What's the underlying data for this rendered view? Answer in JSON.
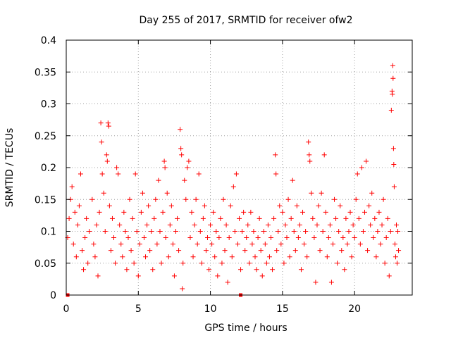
{
  "chart_data": {
    "type": "scatter",
    "title": "Day 255 of 2017, SRMTID for receiver ofw2",
    "xlabel": "GPS time / hours",
    "ylabel": "SRMTID / TECUs",
    "xlim": [
      0,
      24
    ],
    "ylim": [
      0,
      0.4
    ],
    "x_ticks": [
      0,
      5,
      10,
      15,
      20
    ],
    "x_tick_labels": [
      "0",
      "5",
      "10",
      "15",
      "20"
    ],
    "y_ticks": [
      0,
      0.05,
      0.1,
      0.15,
      0.2,
      0.25,
      0.3,
      0.35,
      0.4
    ],
    "y_tick_labels": [
      "0",
      "0.05",
      "0.1",
      "0.15",
      "0.2",
      "0.25",
      "0.3",
      "0.35",
      "0.4"
    ],
    "grid": true,
    "marker": "+",
    "color": "#ff0000",
    "series": [
      {
        "name": "SRMTID",
        "points": [
          [
            0.1,
            0.09
          ],
          [
            0.2,
            0.12
          ],
          [
            0.3,
            0.15
          ],
          [
            0.4,
            0.17
          ],
          [
            0.5,
            0.08
          ],
          [
            0.6,
            0.13
          ],
          [
            0.7,
            0.06
          ],
          [
            0.8,
            0.11
          ],
          [
            0.9,
            0.14
          ],
          [
            1.0,
            0.19
          ],
          [
            1.1,
            0.07
          ],
          [
            1.2,
            0.04
          ],
          [
            1.3,
            0.09
          ],
          [
            1.4,
            0.12
          ],
          [
            1.5,
            0.05
          ],
          [
            1.6,
            0.1
          ],
          [
            1.8,
            0.15
          ],
          [
            1.9,
            0.08
          ],
          [
            2.0,
            0.06
          ],
          [
            2.1,
            0.11
          ],
          [
            2.2,
            0.03
          ],
          [
            2.3,
            0.13
          ],
          [
            2.4,
            0.27
          ],
          [
            2.45,
            0.24
          ],
          [
            2.5,
            0.19
          ],
          [
            2.6,
            0.16
          ],
          [
            2.7,
            0.1
          ],
          [
            2.8,
            0.22
          ],
          [
            2.85,
            0.21
          ],
          [
            2.9,
            0.27
          ],
          [
            2.95,
            0.265
          ],
          [
            3.0,
            0.14
          ],
          [
            3.1,
            0.07
          ],
          [
            3.2,
            0.12
          ],
          [
            3.3,
            0.09
          ],
          [
            3.4,
            0.05
          ],
          [
            3.5,
            0.2
          ],
          [
            3.6,
            0.19
          ],
          [
            3.7,
            0.11
          ],
          [
            3.8,
            0.08
          ],
          [
            3.9,
            0.06
          ],
          [
            4.0,
            0.13
          ],
          [
            4.1,
            0.1
          ],
          [
            4.2,
            0.04
          ],
          [
            4.3,
            0.09
          ],
          [
            4.4,
            0.15
          ],
          [
            4.5,
            0.07
          ],
          [
            4.6,
            0.12
          ],
          [
            4.7,
            0.05
          ],
          [
            4.8,
            0.19
          ],
          [
            4.9,
            0.1
          ],
          [
            5.0,
            0.03
          ],
          [
            5.1,
            0.08
          ],
          [
            5.2,
            0.13
          ],
          [
            5.3,
            0.16
          ],
          [
            5.4,
            0.09
          ],
          [
            5.5,
            0.06
          ],
          [
            5.6,
            0.11
          ],
          [
            5.7,
            0.14
          ],
          [
            5.8,
            0.07
          ],
          [
            5.9,
            0.1
          ],
          [
            6.0,
            0.04
          ],
          [
            6.1,
            0.12
          ],
          [
            6.2,
            0.15
          ],
          [
            6.3,
            0.08
          ],
          [
            6.4,
            0.18
          ],
          [
            6.5,
            0.1
          ],
          [
            6.6,
            0.05
          ],
          [
            6.7,
            0.13
          ],
          [
            6.8,
            0.21
          ],
          [
            6.85,
            0.2
          ],
          [
            6.9,
            0.09
          ],
          [
            7.0,
            0.16
          ],
          [
            7.1,
            0.06
          ],
          [
            7.2,
            0.11
          ],
          [
            7.3,
            0.14
          ],
          [
            7.4,
            0.08
          ],
          [
            7.5,
            0.03
          ],
          [
            7.6,
            0.1
          ],
          [
            7.7,
            0.12
          ],
          [
            7.8,
            0.07
          ],
          [
            7.9,
            0.26
          ],
          [
            7.95,
            0.23
          ],
          [
            8.0,
            0.22
          ],
          [
            8.05,
            0.01
          ],
          [
            8.1,
            0.05
          ],
          [
            8.2,
            0.18
          ],
          [
            8.3,
            0.15
          ],
          [
            8.4,
            0.2
          ],
          [
            8.5,
            0.21
          ],
          [
            8.6,
            0.09
          ],
          [
            8.7,
            0.13
          ],
          [
            8.8,
            0.06
          ],
          [
            8.9,
            0.11
          ],
          [
            9.0,
            0.15
          ],
          [
            9.1,
            0.08
          ],
          [
            9.2,
            0.19
          ],
          [
            9.3,
            0.1
          ],
          [
            9.4,
            0.05
          ],
          [
            9.5,
            0.12
          ],
          [
            9.6,
            0.14
          ],
          [
            9.7,
            0.07
          ],
          [
            9.8,
            0.09
          ],
          [
            9.9,
            0.04
          ],
          [
            10.0,
            0.11
          ],
          [
            10.1,
            0.08
          ],
          [
            10.2,
            0.13
          ],
          [
            10.3,
            0.06
          ],
          [
            10.4,
            0.1
          ],
          [
            10.5,
            0.03
          ],
          [
            10.6,
            0.09
          ],
          [
            10.7,
            0.12
          ],
          [
            10.8,
            0.05
          ],
          [
            10.9,
            0.15
          ],
          [
            11.0,
            0.07
          ],
          [
            11.1,
            0.11
          ],
          [
            11.2,
            0.02
          ],
          [
            11.3,
            0.09
          ],
          [
            11.4,
            0.14
          ],
          [
            11.5,
            0.06
          ],
          [
            11.6,
            0.17
          ],
          [
            11.7,
            0.1
          ],
          [
            11.8,
            0.19
          ],
          [
            11.9,
            0.08
          ],
          [
            12.0,
            0.12
          ],
          [
            12.1,
            0.04
          ],
          [
            12.2,
            0.1
          ],
          [
            12.3,
            0.13
          ],
          [
            12.4,
            0.07
          ],
          [
            12.5,
            0.09
          ],
          [
            12.6,
            0.11
          ],
          [
            12.7,
            0.05
          ],
          [
            12.8,
            0.13
          ],
          [
            12.9,
            0.08
          ],
          [
            13.0,
            0.1
          ],
          [
            13.1,
            0.06
          ],
          [
            13.2,
            0.04
          ],
          [
            13.3,
            0.09
          ],
          [
            13.4,
            0.12
          ],
          [
            13.5,
            0.07
          ],
          [
            13.6,
            0.03
          ],
          [
            13.7,
            0.1
          ],
          [
            13.8,
            0.08
          ],
          [
            13.9,
            0.05
          ],
          [
            14.0,
            0.11
          ],
          [
            14.1,
            0.06
          ],
          [
            14.2,
            0.09
          ],
          [
            14.3,
            0.04
          ],
          [
            14.4,
            0.12
          ],
          [
            14.5,
            0.22
          ],
          [
            14.55,
            0.19
          ],
          [
            14.6,
            0.07
          ],
          [
            14.7,
            0.1
          ],
          [
            14.8,
            0.14
          ],
          [
            14.9,
            0.08
          ],
          [
            15.0,
            0.13
          ],
          [
            15.1,
            0.05
          ],
          [
            15.2,
            0.11
          ],
          [
            15.3,
            0.09
          ],
          [
            15.4,
            0.15
          ],
          [
            15.5,
            0.06
          ],
          [
            15.6,
            0.12
          ],
          [
            15.7,
            0.18
          ],
          [
            15.8,
            0.1
          ],
          [
            15.9,
            0.07
          ],
          [
            16.0,
            0.14
          ],
          [
            16.1,
            0.09
          ],
          [
            16.2,
            0.11
          ],
          [
            16.3,
            0.04
          ],
          [
            16.4,
            0.13
          ],
          [
            16.5,
            0.08
          ],
          [
            16.6,
            0.1
          ],
          [
            16.7,
            0.06
          ],
          [
            16.8,
            0.24
          ],
          [
            16.85,
            0.22
          ],
          [
            16.9,
            0.21
          ],
          [
            17.0,
            0.16
          ],
          [
            17.1,
            0.12
          ],
          [
            17.2,
            0.09
          ],
          [
            17.3,
            0.02
          ],
          [
            17.4,
            0.11
          ],
          [
            17.5,
            0.14
          ],
          [
            17.6,
            0.07
          ],
          [
            17.7,
            0.16
          ],
          [
            17.8,
            0.1
          ],
          [
            17.9,
            0.22
          ],
          [
            18.0,
            0.13
          ],
          [
            18.1,
            0.06
          ],
          [
            18.2,
            0.09
          ],
          [
            18.3,
            0.11
          ],
          [
            18.4,
            0.02
          ],
          [
            18.5,
            0.08
          ],
          [
            18.6,
            0.15
          ],
          [
            18.7,
            0.12
          ],
          [
            18.8,
            0.05
          ],
          [
            18.9,
            0.1
          ],
          [
            19.0,
            0.14
          ],
          [
            19.1,
            0.07
          ],
          [
            19.2,
            0.09
          ],
          [
            19.3,
            0.04
          ],
          [
            19.4,
            0.12
          ],
          [
            19.5,
            0.08
          ],
          [
            19.6,
            0.1
          ],
          [
            19.7,
            0.13
          ],
          [
            19.8,
            0.06
          ],
          [
            19.9,
            0.11
          ],
          [
            20.0,
            0.09
          ],
          [
            20.1,
            0.15
          ],
          [
            20.2,
            0.19
          ],
          [
            20.3,
            0.12
          ],
          [
            20.4,
            0.08
          ],
          [
            20.5,
            0.2
          ],
          [
            20.6,
            0.1
          ],
          [
            20.7,
            0.13
          ],
          [
            20.8,
            0.21
          ],
          [
            20.9,
            0.07
          ],
          [
            21.0,
            0.14
          ],
          [
            21.1,
            0.11
          ],
          [
            21.2,
            0.16
          ],
          [
            21.3,
            0.09
          ],
          [
            21.4,
            0.12
          ],
          [
            21.5,
            0.06
          ],
          [
            21.6,
            0.1
          ],
          [
            21.7,
            0.13
          ],
          [
            21.8,
            0.08
          ],
          [
            21.9,
            0.11
          ],
          [
            22.0,
            0.15
          ],
          [
            22.1,
            0.05
          ],
          [
            22.2,
            0.09
          ],
          [
            22.3,
            0.12
          ],
          [
            22.4,
            0.03
          ],
          [
            22.5,
            0.1
          ],
          [
            22.55,
            0.29
          ],
          [
            22.6,
            0.32
          ],
          [
            22.62,
            0.315
          ],
          [
            22.65,
            0.36
          ],
          [
            22.67,
            0.34
          ],
          [
            22.7,
            0.23
          ],
          [
            22.72,
            0.205
          ],
          [
            22.75,
            0.17
          ],
          [
            22.8,
            0.08
          ],
          [
            22.85,
            0.06
          ],
          [
            22.9,
            0.11
          ],
          [
            22.95,
            0.05
          ],
          [
            23.0,
            0.1
          ],
          [
            23.05,
            0.07
          ]
        ]
      }
    ],
    "zero_markers_x": [
      0.1,
      12.1
    ]
  }
}
